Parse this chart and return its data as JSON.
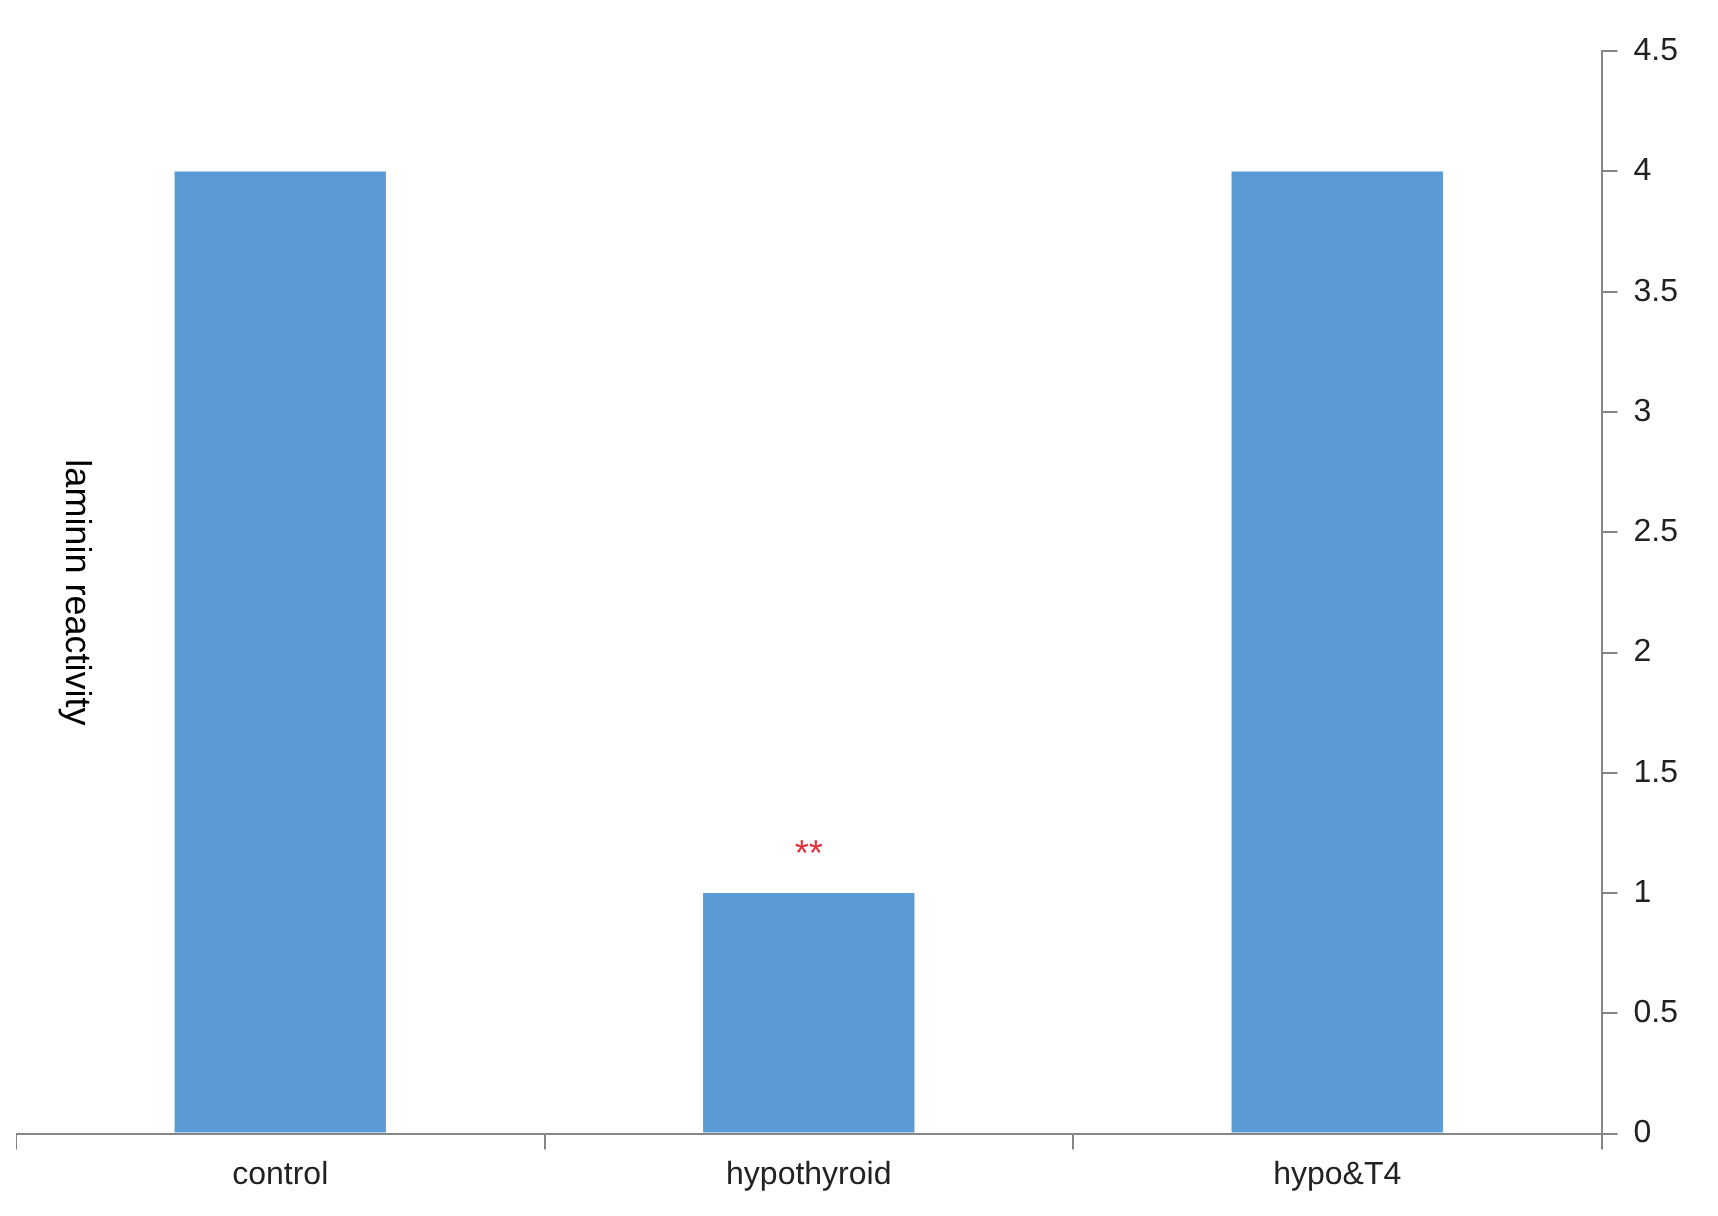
{
  "chart_data": {
    "type": "bar",
    "ylabel": "laminin reactivity",
    "categories": [
      "control",
      "hypothyroid",
      "hypo&T4"
    ],
    "values": [
      4,
      1,
      4
    ],
    "color": "#5b9bd5",
    "ylim": [
      0,
      4.5
    ],
    "yticks": [
      0,
      0.5,
      1,
      1.5,
      2,
      2.5,
      3,
      3.5,
      4,
      4.5
    ],
    "grid": false,
    "annotations": [
      {
        "text": "**",
        "x": "hypothyroid",
        "y": 1
      }
    ]
  }
}
